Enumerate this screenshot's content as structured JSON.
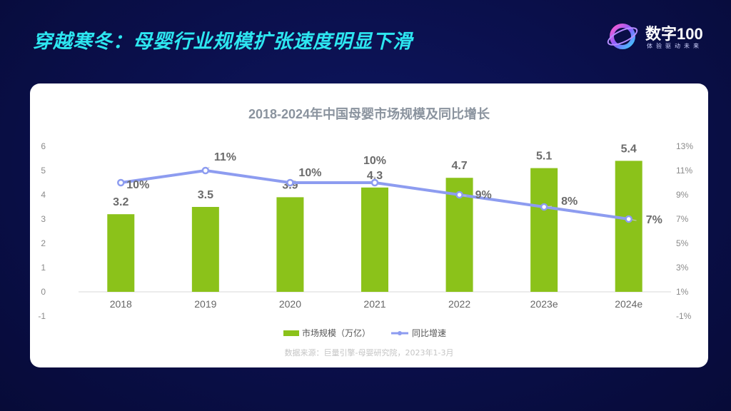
{
  "slide": {
    "title": "穿越寒冬：母婴行业规模扩张速度明显下滑"
  },
  "logo": {
    "name": "数字100",
    "tagline": "体验驱动未来"
  },
  "colors": {
    "bar": "#8bc21a",
    "line": "#8d9cf0",
    "title": "#2de6f0"
  },
  "chart_data": {
    "type": "bar",
    "title": "2018-2024年中国母婴市场规模及同比增长",
    "categories": [
      "2018",
      "2019",
      "2020",
      "2021",
      "2022",
      "2023e",
      "2024e"
    ],
    "series": [
      {
        "name": "市场规模（万亿）",
        "type": "bar",
        "axis": "left",
        "values": [
          3.2,
          3.5,
          3.9,
          4.3,
          4.7,
          5.1,
          5.4
        ],
        "labels": [
          "3.2",
          "3.5",
          "3.9",
          "4.3",
          "4.7",
          "5.1",
          "5.4"
        ]
      },
      {
        "name": "同比增速",
        "type": "line",
        "axis": "right",
        "values": [
          10,
          11,
          10,
          10,
          9,
          8,
          7
        ],
        "labels": [
          "10%",
          "11%",
          "10%",
          "10%",
          "9%",
          "8%",
          "7%"
        ]
      }
    ],
    "y_left": {
      "min": -1,
      "max": 6,
      "ticks": [
        "-1",
        "0",
        "1",
        "2",
        "3",
        "4",
        "5",
        "6"
      ]
    },
    "y_right": {
      "min": -1,
      "max": 13,
      "ticks": [
        "-1%",
        "1%",
        "3%",
        "5%",
        "7%",
        "9%",
        "11%",
        "13%"
      ]
    },
    "legend_position": "bottom",
    "source": "数据来源：巨量引擎-母婴研究院，2023年1-3月"
  }
}
